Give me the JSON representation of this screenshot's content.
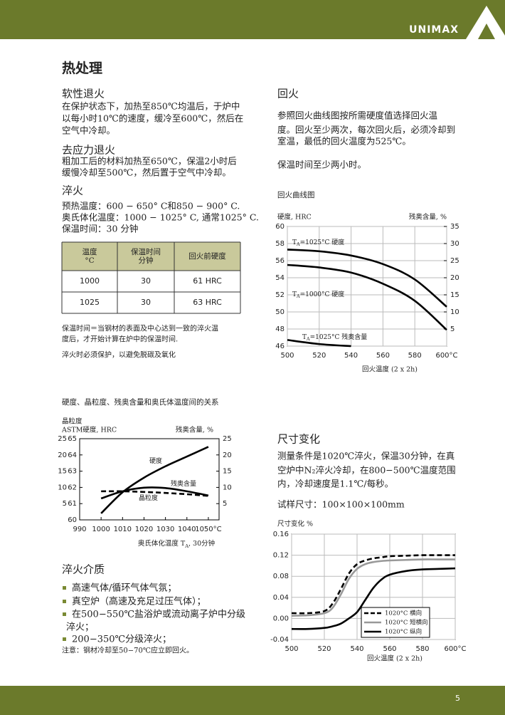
{
  "header": {
    "brand": "UNIMAX"
  },
  "title": "热处理",
  "sections": [
    {
      "heading": "软性退火",
      "paragraphs": [
        [
          "在保护状态下，加热至850℃均温后，于炉中",
          "以每小时10℃的速度，缓冷至600℃，然后在",
          "空气中冷却。"
        ]
      ]
    },
    {
      "heading": "去应力退火",
      "paragraphs": [
        [
          "粗加工后的材料加热至650℃，保温2小时后",
          "缓慢冷却至500℃，然后置于空气中冷却。"
        ]
      ]
    },
    {
      "heading": "淬火",
      "paragraphs": [
        [
          "预热温度：600 − 650° C和850 − 900° C.",
          "奥氏体化温度：1000 − 1025° C, 通常1025° C.",
          "保温时间：30 分钟"
        ]
      ]
    },
    {
      "heading": "回火",
      "paragraphs": [
        [
          "参照回火曲线图按所需硬度值选择回火温",
          "度。回火至少两次，每次回火后，必须冷却到",
          "室温，最低的回火温度为525℃。"
        ],
        [
          "保温时间至少两小时。"
        ]
      ]
    },
    {
      "heading": "尺寸变化",
      "paragraphs": [
        [
          "测量条件是1020℃淬火，保温30分钟，在真",
          "空炉中N₂淬火冷却，在800−500℃温度范围",
          "内，冷却速度是1.1℃/每秒。"
        ],
        [
          "试样尺寸：100×100×100mm"
        ]
      ]
    },
    {
      "heading": "淬火介质",
      "bullets": [
        [
          "高速气体/循环气体气氛；"
        ],
        [
          "真空炉（高速及充足过压气体）；"
        ],
        [
          "在500−550℃盐浴炉或流动离子炉中分级",
          "淬火；"
        ],
        [
          "200−350℃分级淬火；"
        ]
      ],
      "note": "注意：钢材冷却至50−70℃应立即回火。"
    }
  ],
  "table": {
    "header": [
      [
        "温度",
        "°C"
      ],
      [
        "保温时间",
        "分钟"
      ],
      [
        "回火前硬度"
      ]
    ],
    "rows": [
      [
        "1000",
        "30",
        "61 HRC"
      ],
      [
        "1025",
        "30",
        "63 HRC"
      ]
    ]
  },
  "notes": [
    [
      "保温时间＝当钢材的表面及中心达到一致的淬火温",
      "度后，才开始计算在炉中的保温时间."
    ],
    [
      "淬火时必须保护，以避免脱碳及氧化"
    ]
  ],
  "page_number": "5",
  "chart_data": [
    {
      "type": "line",
      "title": "回火曲线图",
      "ylabel": "硬度, HRC",
      "y2label": "残奥含量, %",
      "xlabel": "回火温度 (2 x 2h)",
      "grid": true,
      "x": [
        500,
        520,
        540,
        560,
        580,
        600
      ],
      "xlim": [
        500,
        600
      ],
      "xticks": [
        500,
        520,
        540,
        560,
        580,
        {
          "value": 600,
          "label": "600°C"
        }
      ],
      "ylim": [
        46,
        60
      ],
      "yticks": [
        46,
        48,
        50,
        52,
        54,
        56,
        58,
        60
      ],
      "y2lim": [
        0,
        35
      ],
      "y2ticks": [
        5,
        10,
        15,
        20,
        25,
        30,
        35
      ],
      "series": [
        {
          "color": "#000000",
          "values": [
            57.3,
            57.1,
            56.6,
            55.6,
            53.8,
            50.6
          ]
        },
        {
          "color": "#000000",
          "values": [
            55.5,
            55.2,
            54.6,
            53.3,
            51.3,
            47.9
          ]
        },
        {
          "color": "#000000",
          "axis": "y2",
          "values": [
            1.8,
            0.6,
            0,
            null,
            null,
            null
          ]
        }
      ],
      "annotations": [
        {
          "prefix": "T",
          "sub": "A",
          "text": "=1025°C 硬度"
        },
        {
          "prefix": "T",
          "sub": "A",
          "text": "=1000°C 硬度"
        },
        {
          "prefix": "T",
          "sub": "A",
          "text": "=1025°C 残奥含量"
        }
      ]
    },
    {
      "type": "line",
      "title": "硬度、晶粒度、残奥含量和奥氏体温度间的关系",
      "y3label": "晶粒度",
      "ylabel": "ASTM硬度, HRC",
      "y2label": "残奥含量, %",
      "xlabel": {
        "text": "奥氏体化温度 T",
        "sub": "A",
        "suffix": ", 30分钟"
      },
      "grid": false,
      "x": [
        1000,
        1010,
        1020,
        1030,
        1040,
        1050
      ],
      "xlim": [
        990,
        1055
      ],
      "xticks": [
        990,
        1000,
        1010,
        1020,
        1030,
        1040,
        {
          "value": 1050,
          "label": "1050°C"
        }
      ],
      "ylim": [
        60,
        65
      ],
      "yticks": [
        60,
        61,
        62,
        63,
        64,
        65
      ],
      "y2lim": [
        0,
        25
      ],
      "y2ticks": [
        5,
        10,
        15,
        20,
        25
      ],
      "y3lim": [
        0,
        25
      ],
      "y3ticks": [
        5,
        10,
        15,
        20,
        25
      ],
      "series": [
        {
          "color": "#000000",
          "values": [
            60.4,
            61.7,
            62.6,
            63.3,
            63.9,
            64.5
          ]
        },
        {
          "color": "#000000",
          "axis": "y2",
          "values": [
            6.6,
            8.8,
            9.9,
            9.8,
            8.8,
            7.5
          ]
        },
        {
          "color": "#000000",
          "axis": "y3",
          "linestyle": "dashed",
          "values": [
            8.8,
            8.8,
            8.6,
            8.3,
            7.9,
            7.4
          ]
        }
      ],
      "annotations": [
        {
          "text": "硬度"
        },
        {
          "text": "残奥含量"
        },
        {
          "text": "晶粒度"
        }
      ]
    },
    {
      "type": "line",
      "ylabel": "尺寸变化 %",
      "xlabel": "回火温度 (2 x 2h)",
      "grid": true,
      "legend": "lower right",
      "x": [
        500,
        510,
        520,
        525,
        530,
        535,
        540,
        545,
        550,
        555,
        560,
        570,
        580,
        590,
        600
      ],
      "xlim": [
        500,
        600
      ],
      "xticks": [
        500,
        520,
        540,
        560,
        580,
        {
          "value": 600,
          "label": "600°C"
        }
      ],
      "ylim": [
        -0.04,
        0.16
      ],
      "yticks": [
        -0.04,
        {
          "value": 0,
          "label": "0.00"
        },
        0.04,
        0.08,
        0.12,
        0.16
      ],
      "series": [
        {
          "name": "1020°C 横向",
          "color": "#000000",
          "linestyle": "dashed",
          "values": [
            0.01,
            0.01,
            0.014,
            0.028,
            0.055,
            0.085,
            0.103,
            0.11,
            0.114,
            0.116,
            0.118,
            0.119,
            0.12,
            0.12,
            0.12
          ]
        },
        {
          "name": "1020°C 短横向",
          "color": "#999999",
          "values": [
            0.005,
            0.006,
            0.01,
            0.02,
            0.045,
            0.075,
            0.094,
            0.103,
            0.107,
            0.109,
            0.11,
            0.111,
            0.112,
            0.112,
            0.112
          ]
        },
        {
          "name": "1020°C 纵向",
          "color": "#000000",
          "values": [
            -0.02,
            -0.02,
            -0.018,
            -0.015,
            -0.01,
            0,
            0.012,
            0.035,
            0.058,
            0.074,
            0.083,
            0.09,
            0.093,
            0.094,
            0.095
          ]
        }
      ]
    }
  ]
}
